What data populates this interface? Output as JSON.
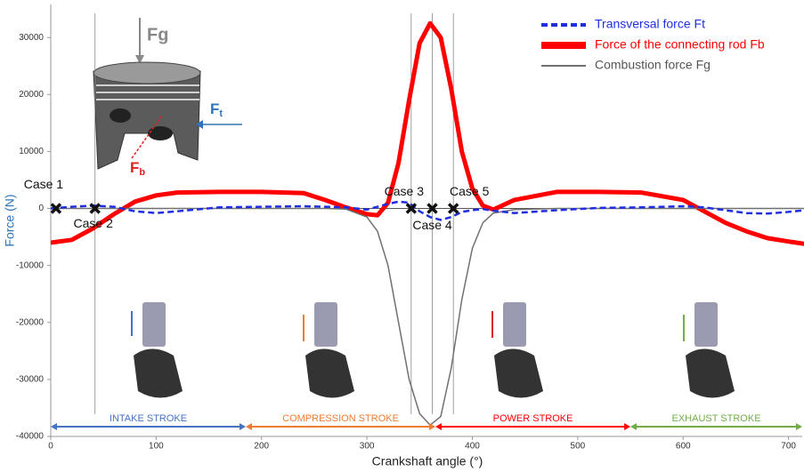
{
  "chart_data": {
    "type": "line",
    "x_label": "Crankshaft angle (°)",
    "y_label": "Force (N)",
    "xlim": [
      0,
      713
    ],
    "ylim": [
      -40000,
      35800
    ],
    "xticks": [
      0,
      100,
      200,
      300,
      400,
      500,
      600,
      700
    ],
    "yticks": [
      -40000,
      -30000,
      -20000,
      -10000,
      0,
      10000,
      20000,
      30000
    ],
    "legend": "upper right",
    "x": [
      0,
      20,
      40,
      60,
      80,
      100,
      120,
      160,
      200,
      240,
      260,
      280,
      300,
      310,
      320,
      330,
      340,
      350,
      360,
      370,
      380,
      390,
      400,
      410,
      420,
      440,
      480,
      520,
      560,
      600,
      620,
      640,
      660,
      680,
      700,
      715
    ],
    "series": [
      {
        "name": "Transversal force Ft",
        "color": "#1f2fe0",
        "dash": true,
        "values": [
          0,
          300,
          500,
          300,
          -500,
          -800,
          -500,
          200,
          300,
          400,
          300,
          200,
          -200,
          300,
          800,
          1200,
          1000,
          -500,
          -1500,
          -2000,
          -1500,
          -600,
          -300,
          -100,
          -400,
          -800,
          -300,
          100,
          200,
          400,
          200,
          -300,
          -800,
          -900,
          -600,
          -300
        ]
      },
      {
        "name": "Force of the connecting rod Fb",
        "color": "#ff0000",
        "dash": false,
        "values": [
          -6000,
          -5500,
          -3500,
          -1000,
          1200,
          2300,
          2800,
          2900,
          2900,
          2700,
          1500,
          200,
          -1000,
          -1200,
          1000,
          8000,
          19000,
          29000,
          32500,
          30000,
          21000,
          10000,
          3500,
          500,
          -200,
          1500,
          2900,
          2900,
          2800,
          1500,
          -500,
          -2500,
          -4000,
          -5200,
          -5800,
          -6200
        ]
      },
      {
        "name": "Combustion force Fg",
        "color": "#707070",
        "dash": false,
        "values": [
          0,
          0,
          0,
          0,
          0,
          0,
          0,
          0,
          0,
          0,
          0,
          -100,
          -1500,
          -4000,
          -10000,
          -20000,
          -30000,
          -36000,
          -38000,
          -36500,
          -28000,
          -16000,
          -7000,
          -2500,
          -800,
          -200,
          0,
          0,
          0,
          0,
          0,
          0,
          0,
          0,
          0,
          0
        ]
      }
    ],
    "cases": [
      {
        "label": "Case 1",
        "x": 5,
        "y": 0
      },
      {
        "label": "Case 2",
        "x": 42,
        "y": 0
      },
      {
        "label": "Case 3",
        "x": 342,
        "y": 0
      },
      {
        "label": "Case 4",
        "x": 362,
        "y": 0
      },
      {
        "label": "Case 5",
        "x": 382,
        "y": 0
      }
    ],
    "strokes": [
      {
        "label": "INTAKE STROKE",
        "start": 0,
        "end": 185,
        "color": "#4472c4"
      },
      {
        "label": "COMPRESSION STROKE",
        "start": 185,
        "end": 365,
        "color": "#ed7d31"
      },
      {
        "label": "POWER STROKE",
        "start": 365,
        "end": 550,
        "color": "#ff0000"
      },
      {
        "label": "EXHAUST STROKE",
        "start": 550,
        "end": 713,
        "color": "#70ad47"
      }
    ]
  },
  "illustration": {
    "fg": "Fg",
    "ft": {
      "base": "F",
      "sub": "t"
    },
    "fb": {
      "base": "F",
      "sub": "b"
    }
  }
}
